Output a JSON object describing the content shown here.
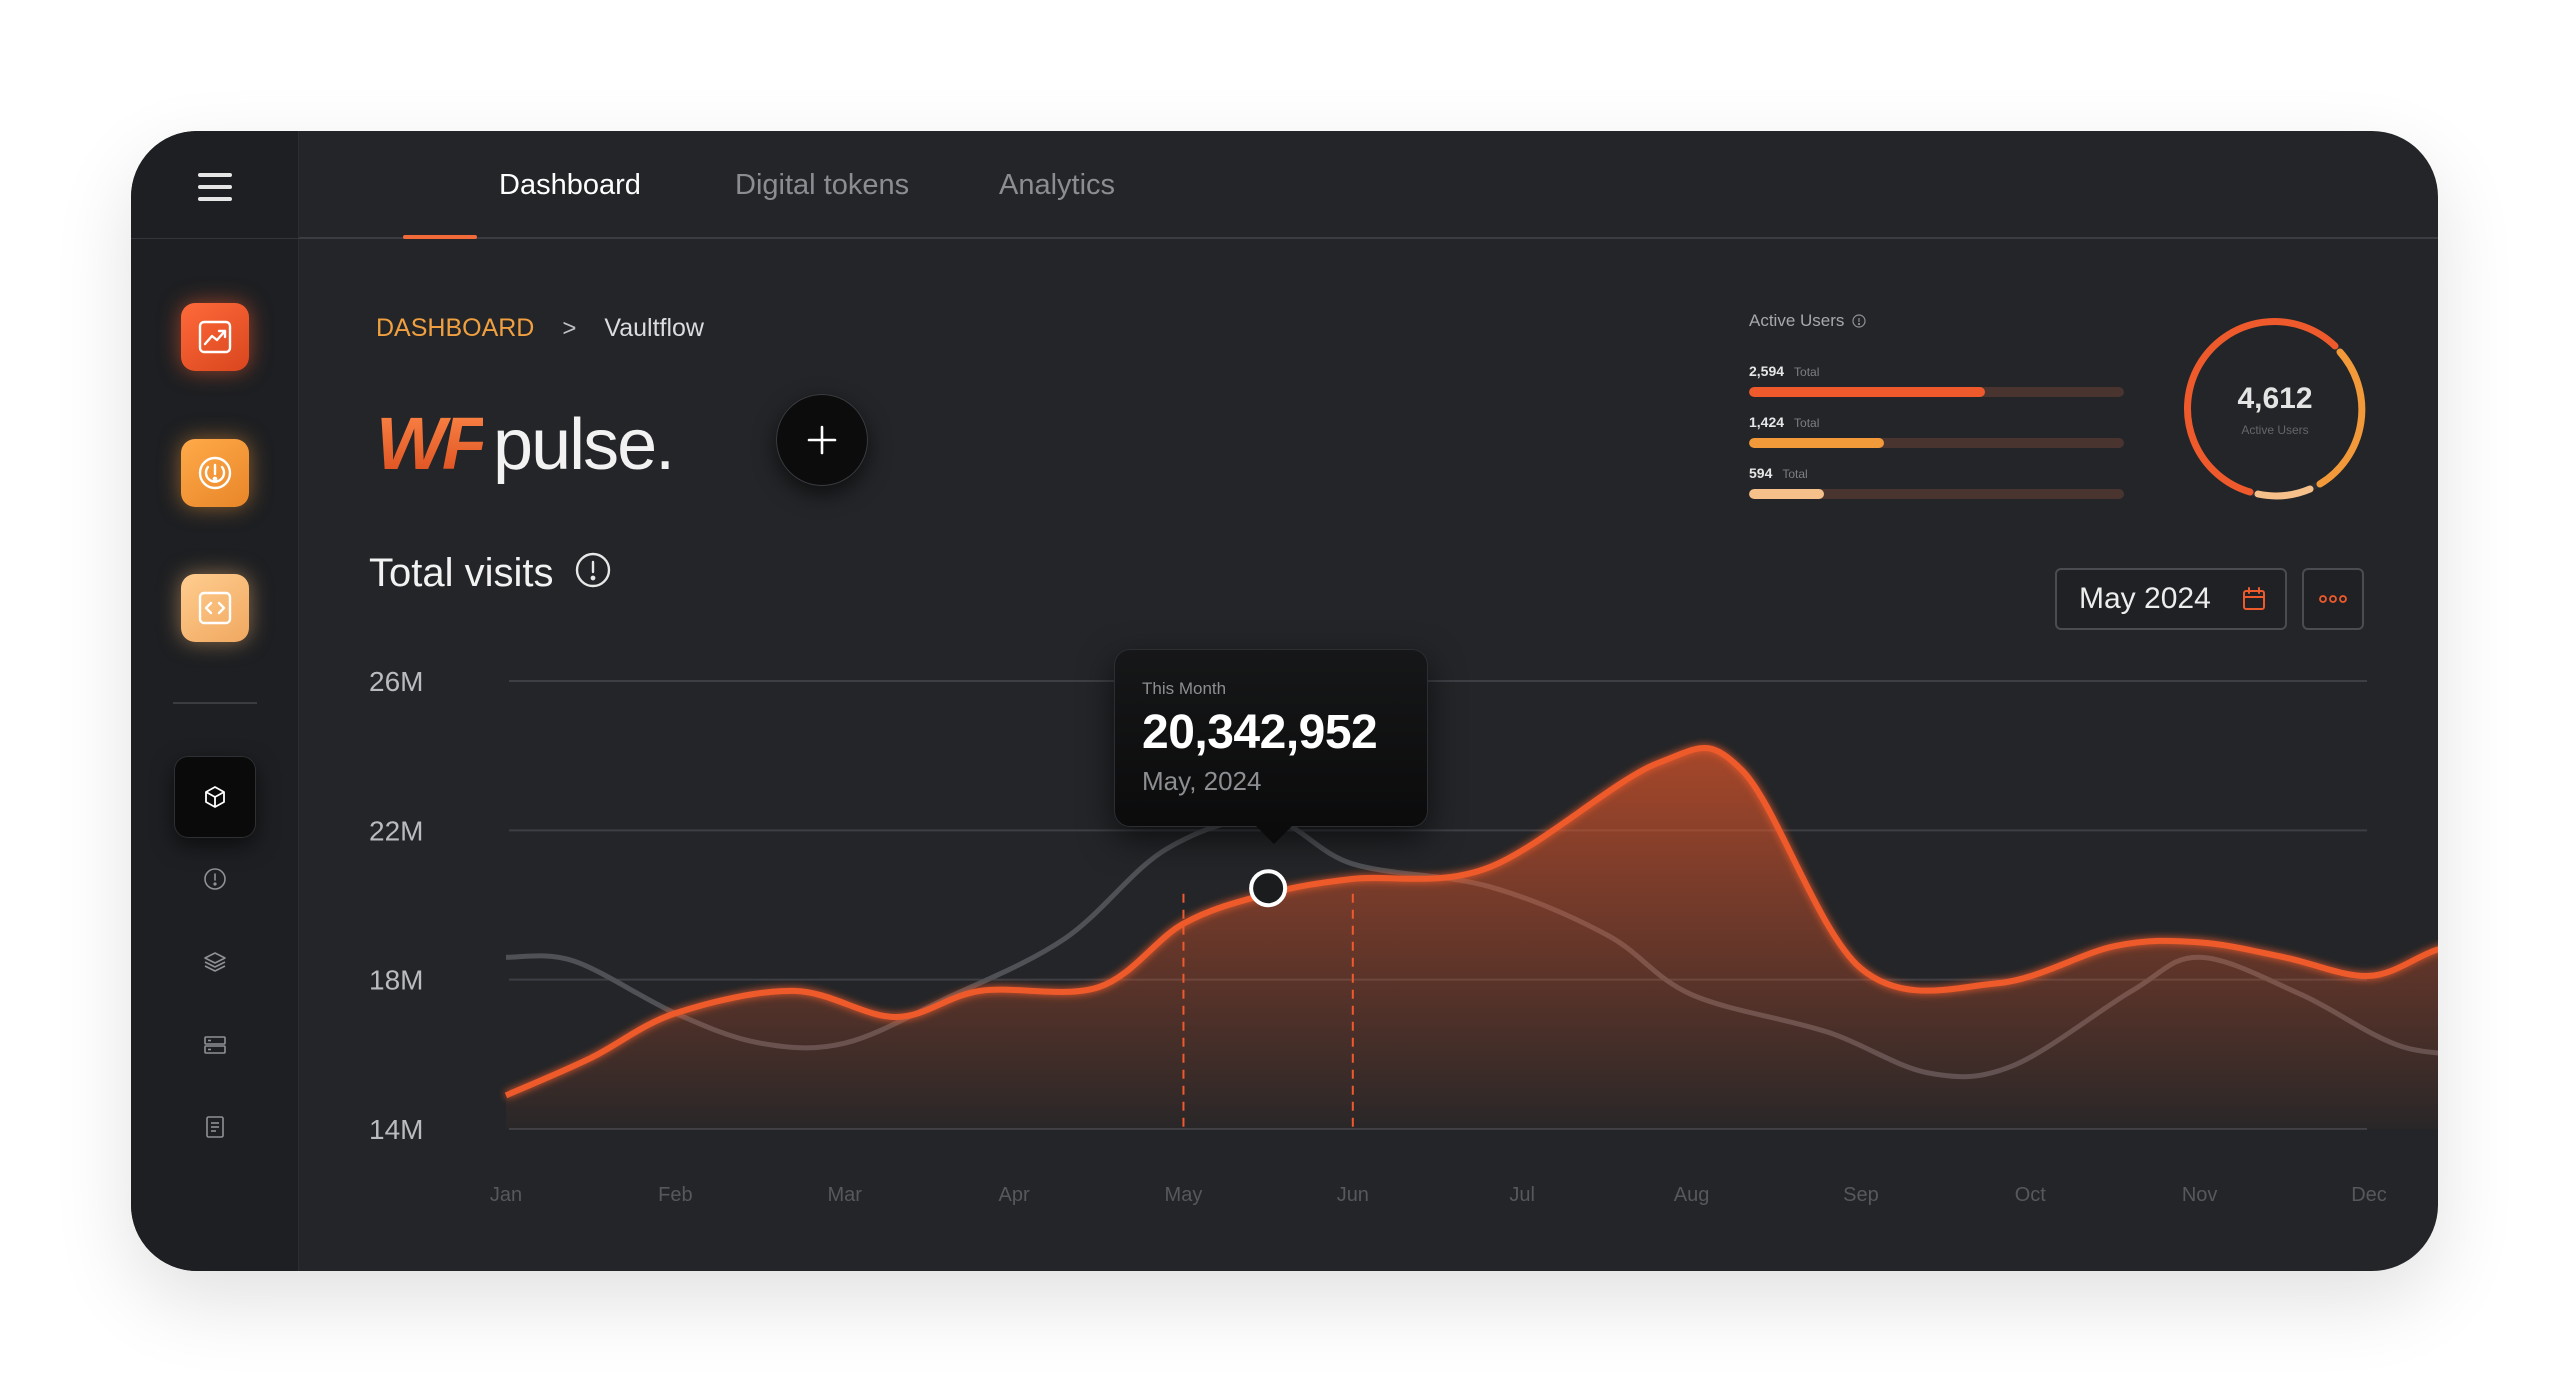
{
  "app": {
    "brand_prefix": "WF",
    "brand_name": "pulse."
  },
  "tabs": [
    {
      "label": "Dashboard",
      "active": true
    },
    {
      "label": "Digital tokens",
      "active": false
    },
    {
      "label": "Analytics",
      "active": false
    }
  ],
  "breadcrumb": {
    "root": "DASHBOARD",
    "separator": ">",
    "current": "Vaultflow"
  },
  "sidebar": {
    "apps": [
      "chart-up-icon",
      "target-icon",
      "code-icon"
    ],
    "nav": [
      "cube-icon",
      "alert-circle-icon",
      "layers-icon",
      "server-icon",
      "document-icon"
    ]
  },
  "section": {
    "title": "Total visits"
  },
  "active_users": {
    "title": "Active Users",
    "total": "4,612",
    "total_label": "Active Users",
    "rows": [
      {
        "value": "2,594",
        "label": "Total",
        "fraction": 0.63,
        "color": "#ee5a2c"
      },
      {
        "value": "1,424",
        "label": "Total",
        "fraction": 0.36,
        "color": "#f29a3a"
      },
      {
        "value": "594",
        "label": "Total",
        "fraction": 0.2,
        "color": "#f5c08a"
      }
    ]
  },
  "date_picker": {
    "value": "May 2024"
  },
  "tooltip": {
    "label": "This Month",
    "value": "20,342,952",
    "date": "May, 2024"
  },
  "colors": {
    "accent": "#ee5a2c",
    "secondary_line": "#4f5156",
    "breadcrumb_root": "#f0a040"
  },
  "chart_data": {
    "type": "area",
    "x": [
      "Jan",
      "Feb",
      "Mar",
      "Apr",
      "May",
      "Jun",
      "Jul",
      "Aug",
      "Sep",
      "Oct",
      "Nov",
      "Dec"
    ],
    "y_ticks": [
      "26M",
      "22M",
      "18M",
      "14M"
    ],
    "ylim": [
      14,
      26
    ],
    "y_unit": "M",
    "highlight_range": [
      "May",
      "Jun"
    ],
    "grid": true,
    "series": [
      {
        "points": [
          [
            0,
            14.9
          ],
          [
            0.5,
            15.9
          ],
          [
            1,
            17.1
          ],
          [
            1.7,
            17.7
          ],
          [
            2.3,
            17.0
          ],
          [
            2.8,
            17.7
          ],
          [
            3.5,
            17.8
          ],
          [
            4,
            19.5
          ],
          [
            4.5,
            20.3
          ],
          [
            5,
            20.7
          ],
          [
            5.8,
            21.0
          ],
          [
            6.8,
            23.8
          ],
          [
            7.3,
            23.6
          ],
          [
            8,
            18.3
          ],
          [
            8.8,
            17.9
          ],
          [
            9.5,
            18.9
          ],
          [
            10,
            19.0
          ],
          [
            10.5,
            18.6
          ],
          [
            11,
            18.1
          ],
          [
            11.4,
            18.8
          ],
          [
            11.75,
            19.2
          ]
        ]
      },
      {
        "points": [
          [
            0,
            18.6
          ],
          [
            0.4,
            18.5
          ],
          [
            1,
            17.1
          ],
          [
            1.5,
            16.3
          ],
          [
            2,
            16.3
          ],
          [
            2.6,
            17.5
          ],
          [
            3.3,
            19.1
          ],
          [
            3.9,
            21.5
          ],
          [
            4.5,
            22.3
          ],
          [
            5,
            21.1
          ],
          [
            5.8,
            20.5
          ],
          [
            6.5,
            19.2
          ],
          [
            7,
            17.6
          ],
          [
            7.8,
            16.6
          ],
          [
            8.4,
            15.5
          ],
          [
            8.9,
            15.7
          ],
          [
            9.6,
            17.7
          ],
          [
            10,
            18.6
          ],
          [
            10.6,
            17.6
          ],
          [
            11.2,
            16.2
          ],
          [
            11.75,
            16.0
          ]
        ]
      }
    ]
  }
}
